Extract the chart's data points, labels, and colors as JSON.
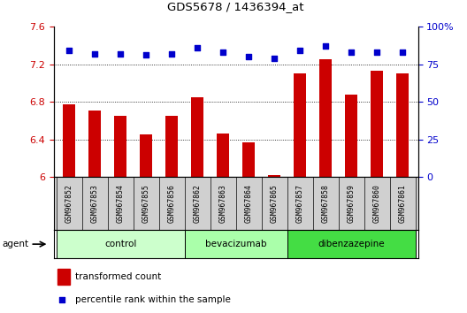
{
  "title": "GDS5678 / 1436394_at",
  "samples": [
    "GSM967852",
    "GSM967853",
    "GSM967854",
    "GSM967855",
    "GSM967856",
    "GSM967862",
    "GSM967863",
    "GSM967864",
    "GSM967865",
    "GSM967857",
    "GSM967858",
    "GSM967859",
    "GSM967860",
    "GSM967861"
  ],
  "bar_values": [
    6.77,
    6.71,
    6.65,
    6.45,
    6.65,
    6.85,
    6.46,
    6.37,
    6.02,
    7.1,
    7.25,
    6.88,
    7.13,
    7.1
  ],
  "scatter_values": [
    84,
    82,
    82,
    81,
    82,
    86,
    83,
    80,
    79,
    84,
    87,
    83,
    83,
    83
  ],
  "bar_color": "#cc0000",
  "scatter_color": "#0000cc",
  "ylim_left": [
    6.0,
    7.6
  ],
  "ylim_right": [
    0,
    100
  ],
  "yticks_left": [
    6.0,
    6.4,
    6.8,
    7.2,
    7.6
  ],
  "ytick_labels_left": [
    "6",
    "6.4",
    "6.8",
    "7.2",
    "7.6"
  ],
  "yticks_right": [
    0,
    25,
    50,
    75,
    100
  ],
  "ytick_labels_right": [
    "0",
    "25",
    "50",
    "75",
    "100%"
  ],
  "groups": [
    {
      "label": "control",
      "start": 0,
      "end": 5,
      "color": "#ccffcc"
    },
    {
      "label": "bevacizumab",
      "start": 5,
      "end": 9,
      "color": "#aaffaa"
    },
    {
      "label": "dibenzazepine",
      "start": 9,
      "end": 14,
      "color": "#44dd44"
    }
  ],
  "agent_label": "agent",
  "legend_bar_label": "transformed count",
  "legend_scatter_label": "percentile rank within the sample",
  "grid_color": "#000000",
  "plot_bg_color": "#ffffff",
  "label_bg_color": "#d0d0d0",
  "bar_bottom": 6.0,
  "bar_width": 0.5
}
